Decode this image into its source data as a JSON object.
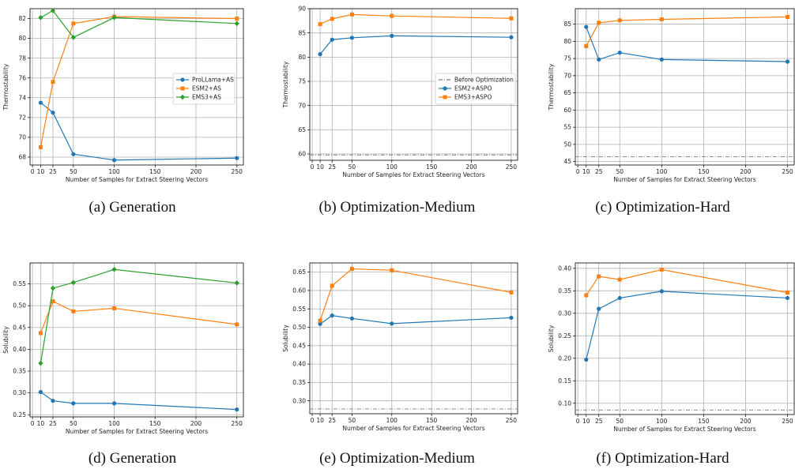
{
  "colors": {
    "blue": "#1f77b4",
    "orange": "#ff7f0e",
    "green": "#2ca02c",
    "gray": "#7f7f7f",
    "grid": "#b0b0b0"
  },
  "chart_data": [
    {
      "type": "line",
      "caption": "(a)  Generation",
      "xlabel": "Number of Samples for Extract Steering Vectors",
      "ylabel": "Thermostability",
      "xlim": [
        -3,
        258
      ],
      "ylim": [
        67.2,
        83.0
      ],
      "xticks": [
        0,
        10,
        25,
        50,
        100,
        150,
        200,
        250
      ],
      "yticks": [
        68,
        70,
        72,
        74,
        76,
        78,
        80,
        82
      ],
      "grid": true,
      "legend": "center-right",
      "series": [
        {
          "name": "ProLLama+AS",
          "color": "#1f77b4",
          "marker": "circle",
          "x": [
            10,
            25,
            50,
            100,
            250
          ],
          "y": [
            73.5,
            72.5,
            68.3,
            67.7,
            67.9
          ]
        },
        {
          "name": "ESM2+AS",
          "color": "#ff7f0e",
          "marker": "square",
          "x": [
            10,
            25,
            50,
            100,
            250
          ],
          "y": [
            69.0,
            75.6,
            81.5,
            82.2,
            82.0
          ]
        },
        {
          "name": "EMS3+AS",
          "color": "#2ca02c",
          "marker": "diamond",
          "x": [
            10,
            25,
            50,
            100,
            250
          ],
          "y": [
            82.1,
            82.8,
            80.1,
            82.1,
            81.5
          ]
        }
      ]
    },
    {
      "type": "line",
      "caption": "(b)  Optimization-Medium",
      "xlabel": "Number of Samples for Extract Steering Vectors",
      "ylabel": "Thermostability",
      "xlim": [
        -3,
        258
      ],
      "ylim": [
        58.7,
        90.0
      ],
      "xticks": [
        0,
        10,
        25,
        50,
        100,
        150,
        200,
        250
      ],
      "yticks": [
        60,
        65,
        70,
        75,
        80,
        85,
        90
      ],
      "grid": true,
      "legend": "center-right",
      "series": [
        {
          "name": "Before Optimization",
          "color": "#7f7f7f",
          "style": "dashdot",
          "x": [
            -3,
            258
          ],
          "y": [
            59.8,
            59.8
          ]
        },
        {
          "name": "ESM2+ASPO",
          "color": "#1f77b4",
          "marker": "circle",
          "x": [
            10,
            25,
            50,
            100,
            250
          ],
          "y": [
            80.6,
            83.6,
            84.0,
            84.4,
            84.1
          ]
        },
        {
          "name": "EMS3+ASPO",
          "color": "#ff7f0e",
          "marker": "square",
          "x": [
            10,
            25,
            50,
            100,
            250
          ],
          "y": [
            86.8,
            87.9,
            88.8,
            88.5,
            88.0
          ]
        }
      ]
    },
    {
      "type": "line",
      "caption": "(c)  Optimization-Hard",
      "xlabel": "Number of Samples for Extract Steering Vectors",
      "ylabel": "Thermostability",
      "xlim": [
        -3,
        258
      ],
      "ylim": [
        44.0,
        89.5
      ],
      "xticks": [
        0,
        10,
        25,
        50,
        100,
        150,
        200,
        250
      ],
      "yticks": [
        45,
        50,
        55,
        60,
        65,
        70,
        75,
        80,
        85
      ],
      "grid": true,
      "legend": "none",
      "series": [
        {
          "name": "Before Optimization",
          "color": "#7f7f7f",
          "style": "dashdot",
          "x": [
            -3,
            258
          ],
          "y": [
            46.4,
            46.4
          ]
        },
        {
          "name": "ESM2+ASPO",
          "color": "#1f77b4",
          "marker": "circle",
          "x": [
            10,
            25,
            50,
            100,
            250
          ],
          "y": [
            84.2,
            74.7,
            76.7,
            74.7,
            74.1
          ]
        },
        {
          "name": "EMS3+ASPO",
          "color": "#ff7f0e",
          "marker": "square",
          "x": [
            10,
            25,
            50,
            100,
            250
          ],
          "y": [
            78.6,
            85.4,
            86.1,
            86.4,
            87.1
          ]
        }
      ]
    },
    {
      "type": "line",
      "caption": "(d)  Generation",
      "xlabel": "Number of Samples for Extract Steering Vectors",
      "ylabel": "Solubility",
      "xlim": [
        -3,
        258
      ],
      "ylim": [
        0.245,
        0.598
      ],
      "xticks": [
        0,
        10,
        25,
        50,
        100,
        150,
        200,
        250
      ],
      "yticks": [
        0.25,
        0.3,
        0.35,
        0.4,
        0.45,
        0.5,
        0.55
      ],
      "ytick_labels": [
        "0.25",
        "0.30",
        "0.35",
        "0.40",
        "0.45",
        "0.50",
        "0.55"
      ],
      "grid": true,
      "legend": "none",
      "series": [
        {
          "name": "ProLLama+AS",
          "color": "#1f77b4",
          "marker": "circle",
          "x": [
            10,
            25,
            50,
            100,
            250
          ],
          "y": [
            0.302,
            0.282,
            0.276,
            0.276,
            0.262
          ]
        },
        {
          "name": "ESM2+AS",
          "color": "#ff7f0e",
          "marker": "square",
          "x": [
            10,
            25,
            50,
            100,
            250
          ],
          "y": [
            0.437,
            0.51,
            0.487,
            0.494,
            0.457
          ]
        },
        {
          "name": "EMS3+AS",
          "color": "#2ca02c",
          "marker": "diamond",
          "x": [
            10,
            25,
            50,
            100,
            250
          ],
          "y": [
            0.368,
            0.54,
            0.553,
            0.583,
            0.552
          ]
        }
      ]
    },
    {
      "type": "line",
      "caption": "(e)  Optimization-Medium",
      "xlabel": "Number of Samples for Extract Steering Vectors",
      "ylabel": "Solubility",
      "xlim": [
        -3,
        258
      ],
      "ylim": [
        0.265,
        0.675
      ],
      "xticks": [
        0,
        10,
        25,
        50,
        100,
        150,
        200,
        250
      ],
      "yticks": [
        0.3,
        0.35,
        0.4,
        0.45,
        0.5,
        0.55,
        0.6,
        0.65
      ],
      "ytick_labels": [
        "0.30",
        "0.35",
        "0.40",
        "0.45",
        "0.50",
        "0.55",
        "0.60",
        "0.65"
      ],
      "grid": true,
      "legend": "none",
      "series": [
        {
          "name": "Before Optimization",
          "color": "#7f7f7f",
          "style": "dashdot",
          "x": [
            -3,
            258
          ],
          "y": [
            0.278,
            0.278
          ]
        },
        {
          "name": "ESM2+ASPO",
          "color": "#1f77b4",
          "marker": "circle",
          "x": [
            10,
            25,
            50,
            100,
            250
          ],
          "y": [
            0.509,
            0.532,
            0.524,
            0.51,
            0.526
          ]
        },
        {
          "name": "EMS3+ASPO",
          "color": "#ff7f0e",
          "marker": "square",
          "x": [
            10,
            25,
            50,
            100,
            250
          ],
          "y": [
            0.518,
            0.613,
            0.659,
            0.655,
            0.595
          ]
        }
      ]
    },
    {
      "type": "line",
      "caption": "(f)  Optimization-Hard",
      "xlabel": "Number of Samples for Extract Steering Vectors",
      "ylabel": "Solubility",
      "xlim": [
        -3,
        258
      ],
      "ylim": [
        0.075,
        0.412
      ],
      "xticks": [
        0,
        10,
        25,
        50,
        100,
        150,
        200,
        250
      ],
      "yticks": [
        0.1,
        0.15,
        0.2,
        0.25,
        0.3,
        0.35,
        0.4
      ],
      "ytick_labels": [
        "0.10",
        "0.15",
        "0.20",
        "0.25",
        "0.30",
        "0.35",
        "0.40"
      ],
      "grid": true,
      "legend": "none",
      "series": [
        {
          "name": "Before Optimization",
          "color": "#7f7f7f",
          "style": "dashdot",
          "x": [
            -3,
            258
          ],
          "y": [
            0.085,
            0.085
          ]
        },
        {
          "name": "ESM2+ASPO",
          "color": "#1f77b4",
          "marker": "circle",
          "x": [
            10,
            25,
            50,
            100,
            250
          ],
          "y": [
            0.197,
            0.31,
            0.334,
            0.349,
            0.334
          ]
        },
        {
          "name": "EMS3+ASPO",
          "color": "#ff7f0e",
          "marker": "square",
          "x": [
            10,
            25,
            50,
            100,
            250
          ],
          "y": [
            0.34,
            0.382,
            0.375,
            0.397,
            0.346
          ]
        }
      ]
    }
  ]
}
